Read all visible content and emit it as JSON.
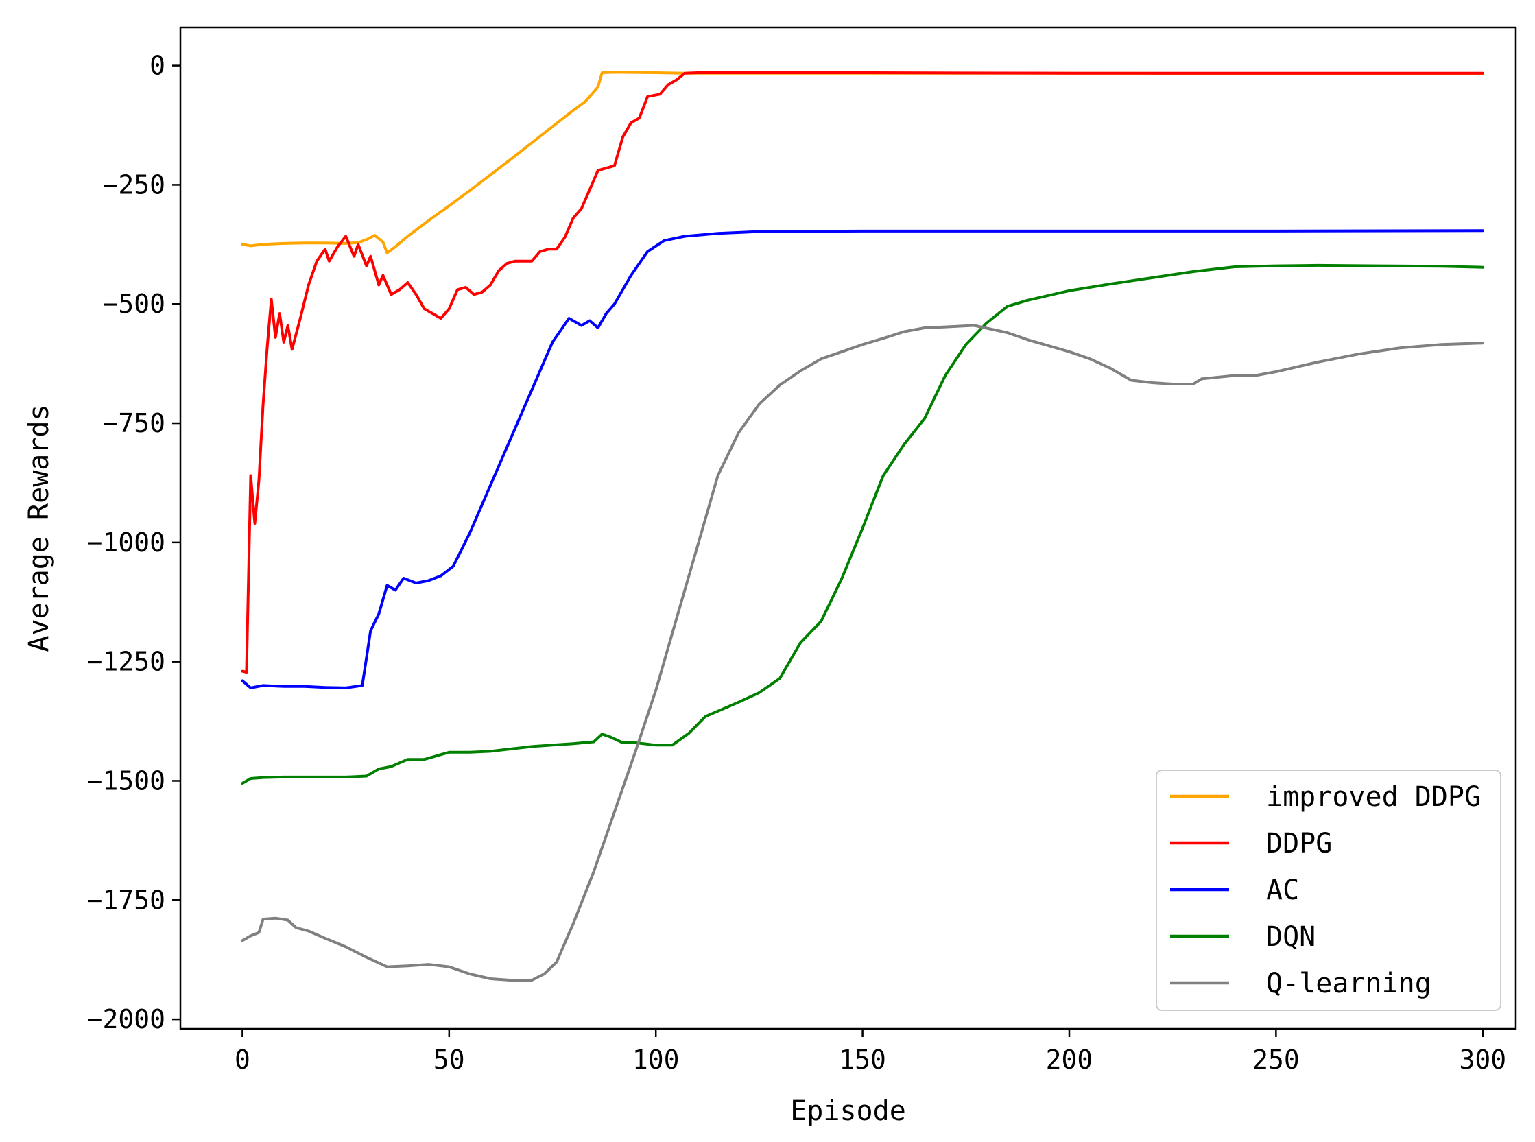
{
  "chart_data": {
    "type": "line",
    "title": "",
    "xlabel": "Episode",
    "ylabel": "Average Rewards",
    "xlim": [
      -15,
      308
    ],
    "ylim": [
      -2020,
      80
    ],
    "x_ticks": [
      0,
      50,
      100,
      150,
      200,
      250,
      300
    ],
    "y_ticks": [
      0,
      -250,
      -500,
      -750,
      -1000,
      -1250,
      -1500,
      -1750,
      -2000
    ],
    "grid": false,
    "legend_position": "lower-right",
    "series": [
      {
        "name": "improved DDPG",
        "color": "#FFA500",
        "points": [
          [
            0,
            -375
          ],
          [
            2,
            -378
          ],
          [
            5,
            -375
          ],
          [
            10,
            -373
          ],
          [
            15,
            -372
          ],
          [
            20,
            -372
          ],
          [
            25,
            -373
          ],
          [
            28,
            -371
          ],
          [
            30,
            -365
          ],
          [
            32,
            -356
          ],
          [
            34,
            -370
          ],
          [
            35,
            -393
          ],
          [
            37,
            -380
          ],
          [
            40,
            -358
          ],
          [
            45,
            -325
          ],
          [
            50,
            -294
          ],
          [
            55,
            -262
          ],
          [
            60,
            -229
          ],
          [
            65,
            -196
          ],
          [
            70,
            -162
          ],
          [
            75,
            -128
          ],
          [
            80,
            -94
          ],
          [
            83,
            -75
          ],
          [
            86,
            -45
          ],
          [
            87,
            -15
          ],
          [
            90,
            -14
          ],
          [
            100,
            -15
          ],
          [
            107,
            -16
          ],
          [
            120,
            -16
          ],
          [
            150,
            -16
          ],
          [
            200,
            -16
          ],
          [
            250,
            -17
          ],
          [
            300,
            -17
          ]
        ]
      },
      {
        "name": "DDPG",
        "color": "#FF0000",
        "points": [
          [
            0,
            -1270
          ],
          [
            1,
            -1272
          ],
          [
            2,
            -860
          ],
          [
            3,
            -960
          ],
          [
            4,
            -870
          ],
          [
            5,
            -710
          ],
          [
            6,
            -590
          ],
          [
            7,
            -490
          ],
          [
            8,
            -570
          ],
          [
            9,
            -520
          ],
          [
            10,
            -580
          ],
          [
            11,
            -545
          ],
          [
            12,
            -595
          ],
          [
            14,
            -530
          ],
          [
            16,
            -460
          ],
          [
            18,
            -410
          ],
          [
            20,
            -385
          ],
          [
            21,
            -410
          ],
          [
            23,
            -380
          ],
          [
            25,
            -358
          ],
          [
            27,
            -400
          ],
          [
            28,
            -375
          ],
          [
            30,
            -420
          ],
          [
            31,
            -400
          ],
          [
            33,
            -460
          ],
          [
            34,
            -440
          ],
          [
            36,
            -480
          ],
          [
            38,
            -470
          ],
          [
            40,
            -455
          ],
          [
            42,
            -480
          ],
          [
            44,
            -510
          ],
          [
            46,
            -520
          ],
          [
            48,
            -530
          ],
          [
            50,
            -510
          ],
          [
            52,
            -470
          ],
          [
            54,
            -465
          ],
          [
            56,
            -480
          ],
          [
            58,
            -475
          ],
          [
            60,
            -460
          ],
          [
            62,
            -430
          ],
          [
            64,
            -415
          ],
          [
            66,
            -410
          ],
          [
            70,
            -410
          ],
          [
            72,
            -390
          ],
          [
            74,
            -385
          ],
          [
            76,
            -385
          ],
          [
            78,
            -360
          ],
          [
            80,
            -320
          ],
          [
            82,
            -300
          ],
          [
            84,
            -260
          ],
          [
            86,
            -220
          ],
          [
            88,
            -215
          ],
          [
            90,
            -210
          ],
          [
            92,
            -150
          ],
          [
            94,
            -120
          ],
          [
            96,
            -110
          ],
          [
            98,
            -65
          ],
          [
            101,
            -60
          ],
          [
            103,
            -40
          ],
          [
            105,
            -30
          ],
          [
            107,
            -16
          ],
          [
            110,
            -15
          ],
          [
            150,
            -15
          ],
          [
            200,
            -16
          ],
          [
            250,
            -16
          ],
          [
            300,
            -16
          ]
        ]
      },
      {
        "name": "AC",
        "color": "#0000FF",
        "points": [
          [
            0,
            -1290
          ],
          [
            2,
            -1305
          ],
          [
            5,
            -1300
          ],
          [
            10,
            -1302
          ],
          [
            15,
            -1302
          ],
          [
            20,
            -1304
          ],
          [
            25,
            -1305
          ],
          [
            29,
            -1300
          ],
          [
            31,
            -1185
          ],
          [
            33,
            -1150
          ],
          [
            35,
            -1090
          ],
          [
            37,
            -1100
          ],
          [
            39,
            -1075
          ],
          [
            42,
            -1085
          ],
          [
            45,
            -1080
          ],
          [
            48,
            -1070
          ],
          [
            51,
            -1050
          ],
          [
            55,
            -980
          ],
          [
            60,
            -880
          ],
          [
            65,
            -780
          ],
          [
            70,
            -680
          ],
          [
            75,
            -580
          ],
          [
            79,
            -530
          ],
          [
            82,
            -545
          ],
          [
            84,
            -535
          ],
          [
            86,
            -550
          ],
          [
            88,
            -520
          ],
          [
            90,
            -500
          ],
          [
            94,
            -440
          ],
          [
            98,
            -390
          ],
          [
            102,
            -367
          ],
          [
            107,
            -358
          ],
          [
            115,
            -352
          ],
          [
            125,
            -348
          ],
          [
            150,
            -347
          ],
          [
            200,
            -347
          ],
          [
            250,
            -347
          ],
          [
            300,
            -346
          ]
        ]
      },
      {
        "name": "DQN",
        "color": "#008000",
        "points": [
          [
            0,
            -1505
          ],
          [
            2,
            -1495
          ],
          [
            5,
            -1493
          ],
          [
            10,
            -1492
          ],
          [
            20,
            -1492
          ],
          [
            25,
            -1492
          ],
          [
            30,
            -1490
          ],
          [
            33,
            -1475
          ],
          [
            36,
            -1470
          ],
          [
            40,
            -1455
          ],
          [
            44,
            -1455
          ],
          [
            48,
            -1445
          ],
          [
            50,
            -1440
          ],
          [
            55,
            -1440
          ],
          [
            60,
            -1438
          ],
          [
            65,
            -1433
          ],
          [
            70,
            -1428
          ],
          [
            75,
            -1425
          ],
          [
            80,
            -1422
          ],
          [
            85,
            -1418
          ],
          [
            87,
            -1402
          ],
          [
            89,
            -1408
          ],
          [
            92,
            -1420
          ],
          [
            95,
            -1420
          ],
          [
            100,
            -1425
          ],
          [
            104,
            -1425
          ],
          [
            108,
            -1400
          ],
          [
            112,
            -1365
          ],
          [
            116,
            -1350
          ],
          [
            120,
            -1335
          ],
          [
            125,
            -1315
          ],
          [
            130,
            -1285
          ],
          [
            135,
            -1210
          ],
          [
            140,
            -1165
          ],
          [
            145,
            -1075
          ],
          [
            150,
            -970
          ],
          [
            155,
            -860
          ],
          [
            160,
            -795
          ],
          [
            165,
            -740
          ],
          [
            170,
            -650
          ],
          [
            175,
            -585
          ],
          [
            180,
            -540
          ],
          [
            185,
            -505
          ],
          [
            190,
            -492
          ],
          [
            200,
            -472
          ],
          [
            210,
            -458
          ],
          [
            220,
            -445
          ],
          [
            230,
            -432
          ],
          [
            240,
            -422
          ],
          [
            250,
            -420
          ],
          [
            260,
            -419
          ],
          [
            275,
            -420
          ],
          [
            290,
            -421
          ],
          [
            300,
            -423
          ]
        ]
      },
      {
        "name": "Q-learning",
        "color": "#808080",
        "points": [
          [
            0,
            -1835
          ],
          [
            2,
            -1825
          ],
          [
            4,
            -1818
          ],
          [
            5,
            -1790
          ],
          [
            8,
            -1788
          ],
          [
            11,
            -1792
          ],
          [
            13,
            -1808
          ],
          [
            16,
            -1815
          ],
          [
            20,
            -1830
          ],
          [
            25,
            -1848
          ],
          [
            30,
            -1870
          ],
          [
            35,
            -1890
          ],
          [
            40,
            -1888
          ],
          [
            45,
            -1885
          ],
          [
            50,
            -1890
          ],
          [
            55,
            -1905
          ],
          [
            60,
            -1915
          ],
          [
            65,
            -1918
          ],
          [
            70,
            -1918
          ],
          [
            73,
            -1905
          ],
          [
            76,
            -1880
          ],
          [
            80,
            -1800
          ],
          [
            85,
            -1690
          ],
          [
            90,
            -1565
          ],
          [
            95,
            -1440
          ],
          [
            100,
            -1310
          ],
          [
            105,
            -1160
          ],
          [
            110,
            -1010
          ],
          [
            115,
            -860
          ],
          [
            120,
            -770
          ],
          [
            125,
            -710
          ],
          [
            130,
            -670
          ],
          [
            135,
            -640
          ],
          [
            140,
            -615
          ],
          [
            145,
            -600
          ],
          [
            150,
            -585
          ],
          [
            155,
            -572
          ],
          [
            160,
            -558
          ],
          [
            165,
            -550
          ],
          [
            170,
            -548
          ],
          [
            177,
            -545
          ],
          [
            185,
            -560
          ],
          [
            190,
            -575
          ],
          [
            200,
            -600
          ],
          [
            205,
            -615
          ],
          [
            210,
            -635
          ],
          [
            215,
            -660
          ],
          [
            220,
            -665
          ],
          [
            225,
            -668
          ],
          [
            230,
            -668
          ],
          [
            232,
            -657
          ],
          [
            240,
            -650
          ],
          [
            245,
            -650
          ],
          [
            250,
            -642
          ],
          [
            260,
            -622
          ],
          [
            270,
            -605
          ],
          [
            280,
            -592
          ],
          [
            290,
            -585
          ],
          [
            300,
            -582
          ]
        ]
      }
    ]
  }
}
